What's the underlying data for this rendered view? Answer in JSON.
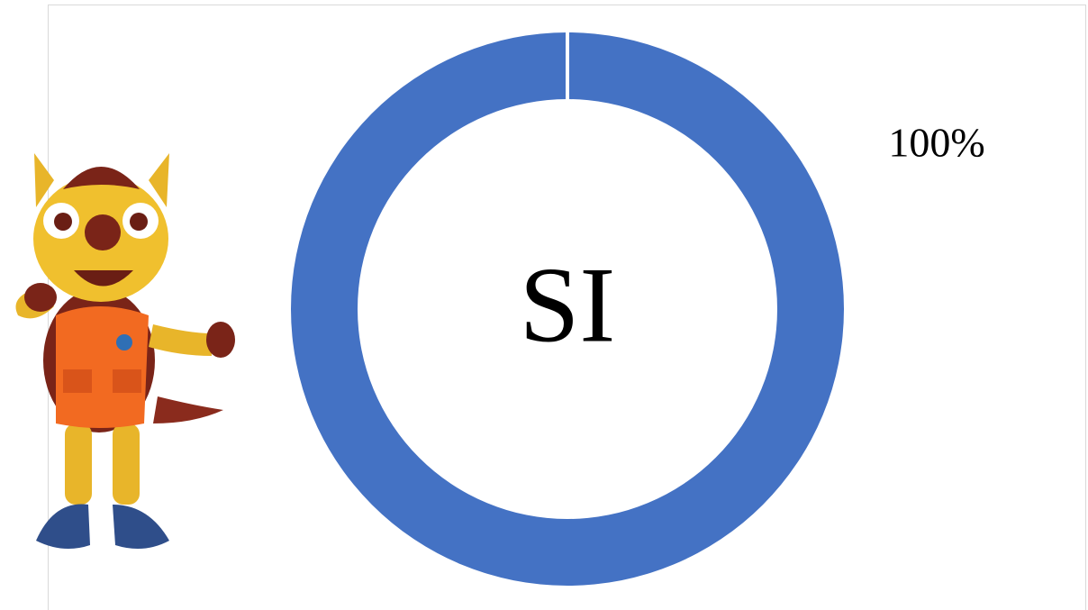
{
  "chart_data": {
    "type": "donut",
    "categories": [
      "SI"
    ],
    "values": [
      100
    ],
    "value_labels": [
      "100%"
    ],
    "colors": [
      "#4472c4"
    ]
  }
}
